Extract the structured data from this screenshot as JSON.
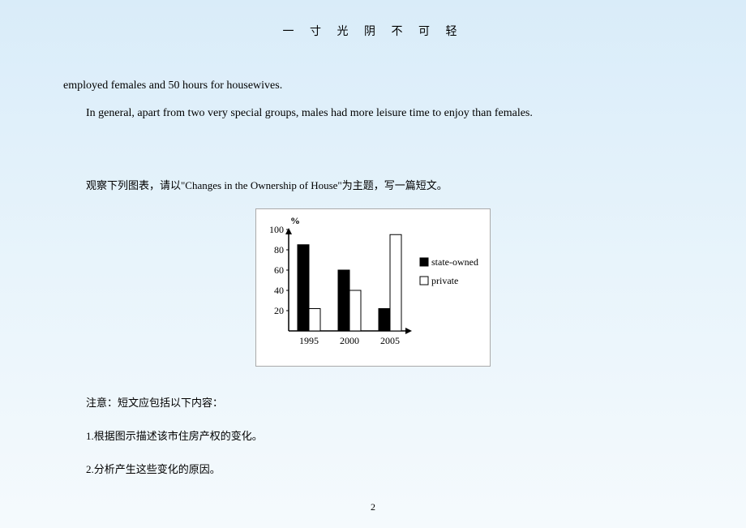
{
  "header": "一 寸 光 阴 不 可 轻",
  "para1": "employed females and 50 hours for housewives.",
  "para2": "In general, apart from two very special groups, males had more leisure time to enjoy than females.",
  "prompt": "观察下列图表，请以\"Changes in the Ownership of House\"为主题，写一篇短文。",
  "note_title": "注意：短文应包括以下内容：",
  "note1": "1.根据图示描述该市住房产权的变化。",
  "note2": "2.分析产生这些变化的原因。",
  "page_number": "2",
  "chart": {
    "type": "bar",
    "y_axis_label": "%",
    "y_ticks": [
      20,
      40,
      60,
      80,
      100
    ],
    "categories": [
      "1995",
      "2000",
      "2005"
    ],
    "series": [
      {
        "name": "state-owned",
        "values": [
          85,
          60,
          22
        ],
        "fill": "#000000"
      },
      {
        "name": "private",
        "values": [
          22,
          40,
          95
        ],
        "fill": "#ffffff"
      }
    ],
    "legend_swatch_state": "#000000",
    "legend_swatch_private": "#ffffff",
    "axis_color": "#000000",
    "background": "#ffffff",
    "bar_border": "#000000",
    "font": "SimSun, Times New Roman",
    "font_size": 12
  }
}
